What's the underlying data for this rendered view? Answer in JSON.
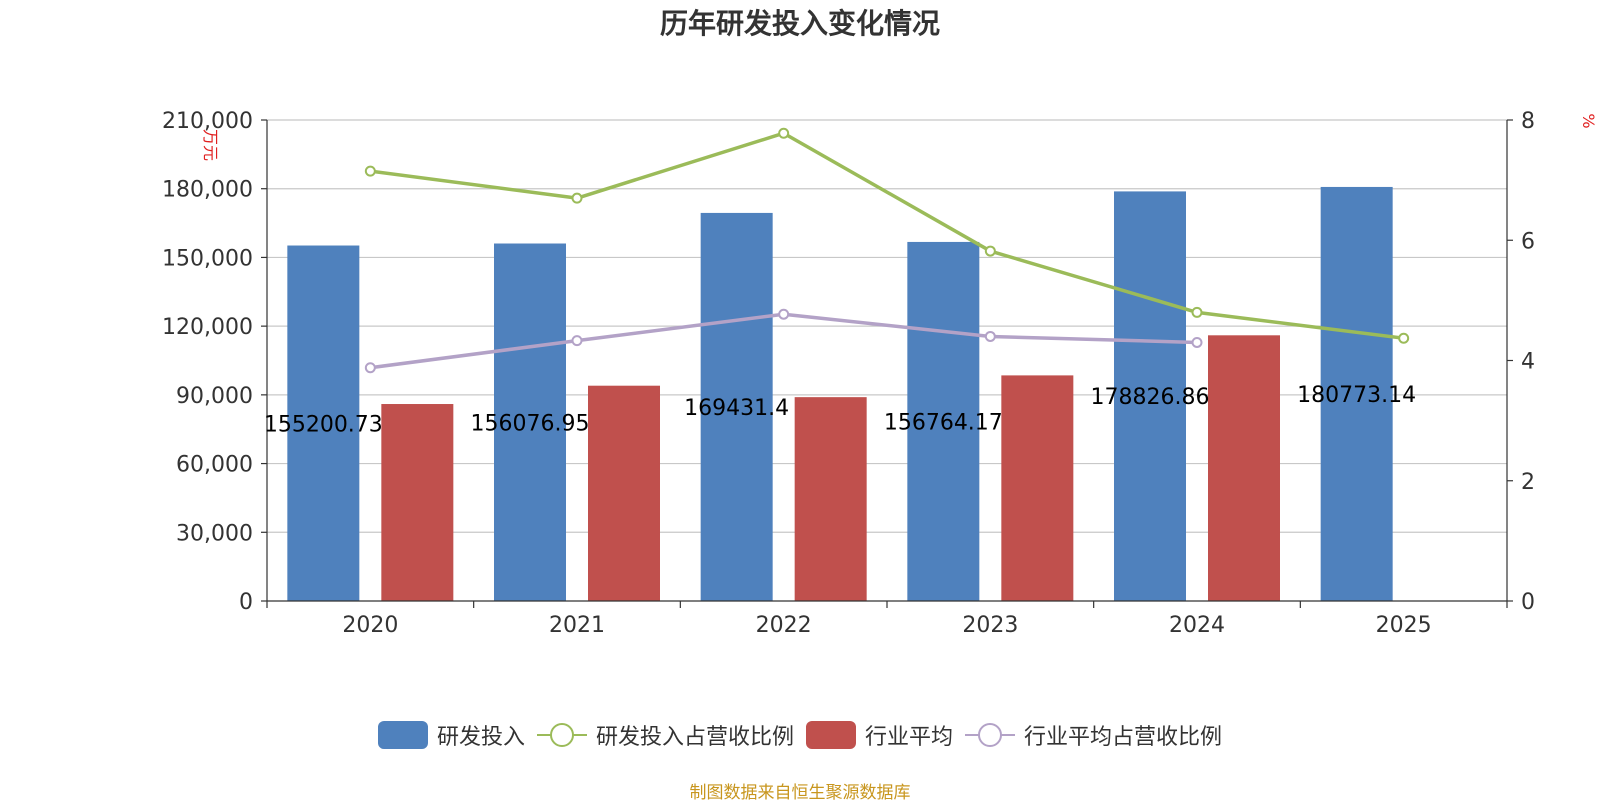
{
  "chart_data": {
    "type": "bar",
    "title": "历年研发投入变化情况",
    "categories": [
      "2020",
      "2021",
      "2022",
      "2023",
      "2024",
      "2025"
    ],
    "y_left": {
      "label": "万元",
      "ticks": [
        "0",
        "30,000",
        "60,000",
        "90,000",
        "120,000",
        "150,000",
        "180,000",
        "210,000"
      ],
      "range": [
        0,
        210000
      ]
    },
    "y_right": {
      "label": "%",
      "ticks": [
        "0",
        "2",
        "4",
        "6",
        "8"
      ],
      "range": [
        0,
        8
      ]
    },
    "grid": true,
    "legend_position": "bottom",
    "bar_series": [
      {
        "name": "研发投入",
        "color": "#4f81bd",
        "values": [
          155200.73,
          156076.95,
          169431.4,
          156764.17,
          178826.86,
          180773.14
        ],
        "data_labels": [
          "155200.73",
          "156076.95",
          "169431.4",
          "156764.17",
          "178826.86",
          "180773.14"
        ]
      },
      {
        "name": "行业平均",
        "color": "#c0504d",
        "values": [
          86000,
          94000,
          89000,
          98500,
          116000,
          null
        ]
      }
    ],
    "line_series": [
      {
        "name": "研发投入占营收比例",
        "color": "#9bbb59",
        "axis": "right",
        "values": [
          7.15,
          6.7,
          7.78,
          5.82,
          4.8,
          4.37
        ]
      },
      {
        "name": "行业平均占营收比例",
        "color": "#b3a2c7",
        "axis": "right",
        "values": [
          3.88,
          4.33,
          4.77,
          4.4,
          4.3,
          null
        ]
      }
    ]
  },
  "source_note": "制图数据来自恒生聚源数据库"
}
